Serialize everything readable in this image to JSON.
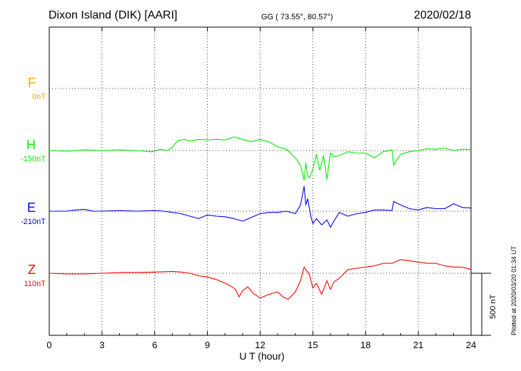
{
  "header": {
    "station": "Dixon Island (DIK)  [AARI]",
    "coords": "GG ( 73.55°,  80.57°)",
    "date": "2020/02/18"
  },
  "side_note": "Plotted at 2020/03/20 01:34 UT",
  "chart_data": {
    "type": "line",
    "xlabel": "U T (hour)",
    "xlim": [
      0,
      24
    ],
    "x_ticks": [
      "0",
      "3",
      "6",
      "9",
      "12",
      "15",
      "18",
      "21",
      "24"
    ],
    "scale_bar": "500 nT",
    "series": [
      {
        "name": "F",
        "baseline": "0nT",
        "color": "#ffa500",
        "x": [],
        "y": []
      },
      {
        "name": "H",
        "baseline": "-150nT",
        "color": "#00ee00",
        "x": [
          0,
          1,
          2,
          3,
          4,
          5,
          5.8,
          6.0,
          6.3,
          6.7,
          7.0,
          7.3,
          7.7,
          8.0,
          8.5,
          9.0,
          9.5,
          10.0,
          10.5,
          11.0,
          11.5,
          12.0,
          12.5,
          13.0,
          13.5,
          14.0,
          14.3,
          14.5,
          14.6,
          14.7,
          14.8,
          15.0,
          15.2,
          15.4,
          15.6,
          15.8,
          16.0,
          16.2,
          16.5,
          17.0,
          17.5,
          18.0,
          18.5,
          19.0,
          19.5,
          19.6,
          19.7,
          20.0,
          20.5,
          21.0,
          21.5,
          22.0,
          22.5,
          23.0,
          23.5,
          24.0
        ],
        "y": [
          0,
          -5,
          5,
          0,
          5,
          0,
          -10,
          -5,
          10,
          0,
          25,
          80,
          90,
          75,
          90,
          85,
          90,
          85,
          110,
          90,
          70,
          90,
          70,
          30,
          10,
          -60,
          -120,
          -240,
          -100,
          -200,
          -220,
          -150,
          -30,
          -160,
          -40,
          -230,
          -20,
          -50,
          -40,
          -10,
          -20,
          -20,
          -60,
          -10,
          5,
          -120,
          -90,
          -30,
          -10,
          0,
          15,
          10,
          20,
          0,
          10,
          10
        ]
      },
      {
        "name": "E",
        "baseline": "-210nT",
        "color": "#0000ff",
        "x": [
          0,
          1,
          1.5,
          2,
          2.5,
          3,
          4,
          5,
          6,
          6.5,
          7,
          7.5,
          8,
          8.5,
          9,
          9.5,
          10,
          10.5,
          11,
          11.5,
          12,
          12.5,
          13,
          13.5,
          14,
          14.3,
          14.5,
          14.6,
          14.7,
          14.9,
          15.0,
          15.2,
          15.5,
          15.8,
          16.0,
          16.2,
          16.5,
          17.0,
          17.5,
          18.0,
          18.5,
          19.0,
          19.5,
          19.6,
          19.7,
          20.0,
          20.5,
          21.0,
          21.5,
          22.0,
          22.5,
          23.0,
          23.5,
          24.0
        ],
        "y": [
          0,
          0,
          10,
          15,
          0,
          0,
          5,
          0,
          5,
          0,
          -10,
          -20,
          -40,
          -60,
          -30,
          -40,
          -45,
          -60,
          -80,
          -50,
          -20,
          -10,
          -10,
          0,
          -20,
          50,
          200,
          50,
          100,
          -50,
          -100,
          -60,
          -110,
          -70,
          -130,
          -80,
          -10,
          -40,
          -20,
          -10,
          10,
          10,
          5,
          80,
          70,
          50,
          20,
          10,
          30,
          20,
          20,
          60,
          30,
          25
        ]
      },
      {
        "name": "Z",
        "baseline": "110nT",
        "color": "#ff0000",
        "x": [
          0,
          1,
          2,
          3,
          4,
          5,
          6,
          7,
          7.5,
          8,
          8.5,
          9,
          9.5,
          10,
          10.3,
          10.6,
          10.8,
          11,
          11.3,
          11.6,
          12,
          12.5,
          13,
          13.3,
          13.6,
          14,
          14.3,
          14.5,
          14.8,
          15.0,
          15.2,
          15.5,
          15.8,
          16.0,
          16.2,
          16.5,
          17.0,
          17.5,
          18.0,
          18.5,
          19.0,
          19.5,
          20.0,
          20.5,
          21.0,
          21.5,
          22.0,
          22.5,
          23.0,
          23.5,
          24.0
        ],
        "y": [
          0,
          -5,
          -5,
          0,
          5,
          5,
          10,
          15,
          10,
          0,
          -20,
          -30,
          -50,
          -80,
          -100,
          -130,
          -190,
          -140,
          -110,
          -160,
          -200,
          -170,
          -150,
          -190,
          -210,
          -150,
          -60,
          50,
          -10,
          -120,
          -80,
          -170,
          -60,
          -130,
          -70,
          -40,
          30,
          40,
          50,
          60,
          80,
          80,
          110,
          100,
          90,
          80,
          80,
          60,
          50,
          50,
          30
        ]
      }
    ]
  }
}
